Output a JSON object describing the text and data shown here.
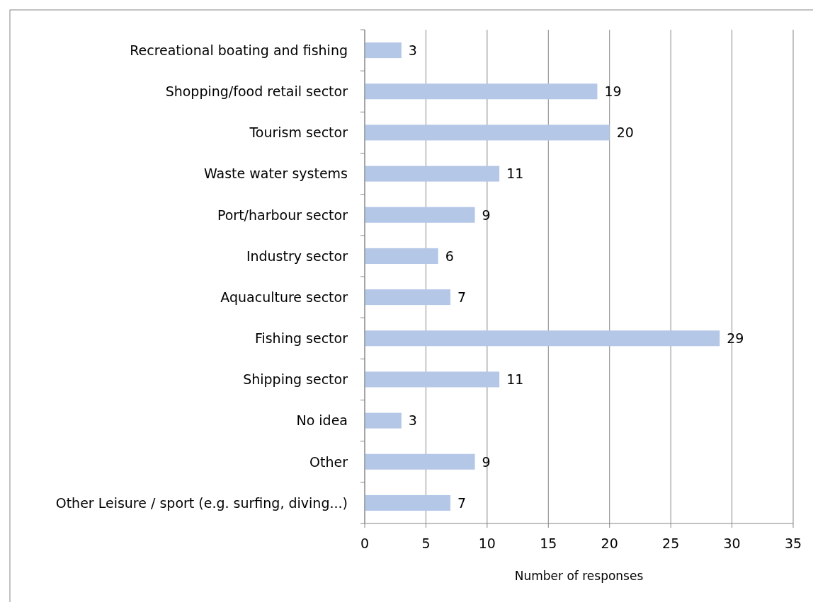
{
  "chart_data": {
    "type": "bar",
    "orientation": "horizontal",
    "categories": [
      "Recreational boating and fishing",
      "Shopping/food retail sector",
      "Tourism sector",
      "Waste water systems",
      "Port/harbour sector",
      "Industry sector",
      "Aquaculture sector",
      "Fishing sector",
      "Shipping sector",
      "No idea",
      "Other",
      "Other Leisure / sport (e.g. surfing, diving...)"
    ],
    "values": [
      3,
      19,
      20,
      11,
      9,
      6,
      7,
      29,
      11,
      3,
      9,
      7
    ],
    "color": "#b4c7e7",
    "xlabel": "Number of responses",
    "xlim": [
      0,
      35
    ],
    "xticks": [
      0,
      5,
      10,
      15,
      20,
      25,
      30,
      35
    ],
    "grid": "x",
    "data_labels": true
  }
}
